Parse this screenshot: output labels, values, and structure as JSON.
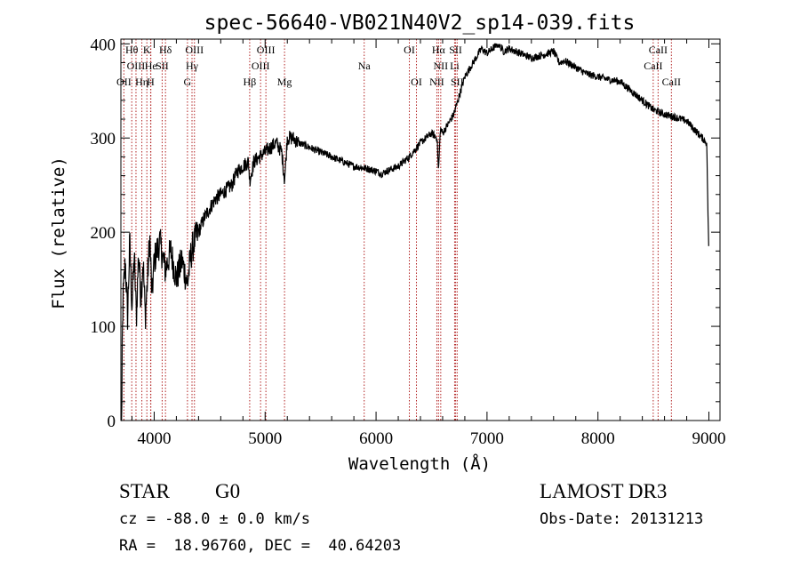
{
  "chart_data": {
    "type": "line",
    "title": "spec-56640-VB021N40V2_sp14-039.fits",
    "xlabel": "Wavelength (Å)",
    "ylabel": "Flux (relative)",
    "xlim": [
      3700,
      9100
    ],
    "ylim": [
      0,
      405
    ],
    "xticks": [
      4000,
      5000,
      6000,
      7000,
      8000,
      9000
    ],
    "yticks": [
      0,
      100,
      200,
      300,
      400
    ],
    "series": [
      {
        "name": "spectrum",
        "x": [
          3700,
          3720,
          3740,
          3760,
          3780,
          3800,
          3820,
          3840,
          3860,
          3880,
          3900,
          3920,
          3940,
          3960,
          3980,
          4000,
          4050,
          4100,
          4150,
          4200,
          4250,
          4300,
          4330,
          4360,
          4400,
          4450,
          4500,
          4550,
          4600,
          4650,
          4700,
          4750,
          4800,
          4850,
          4861,
          4900,
          4950,
          5000,
          5050,
          5100,
          5150,
          5175,
          5200,
          5250,
          5300,
          5400,
          5500,
          5600,
          5700,
          5800,
          5900,
          6000,
          6050,
          6100,
          6200,
          6300,
          6400,
          6450,
          6500,
          6550,
          6563,
          6580,
          6600,
          6650,
          6700,
          6750,
          6800,
          6850,
          6900,
          6950,
          7000,
          7050,
          7100,
          7150,
          7200,
          7300,
          7400,
          7500,
          7600,
          7650,
          7700,
          7800,
          7900,
          8000,
          8100,
          8200,
          8300,
          8400,
          8500,
          8600,
          8700,
          8800,
          8900,
          8980,
          9000
        ],
        "values": [
          5,
          130,
          170,
          110,
          190,
          120,
          175,
          110,
          180,
          130,
          170,
          110,
          150,
          195,
          130,
          170,
          190,
          160,
          180,
          150,
          170,
          145,
          175,
          190,
          200,
          215,
          225,
          235,
          240,
          245,
          250,
          265,
          270,
          275,
          255,
          275,
          280,
          285,
          290,
          295,
          285,
          255,
          300,
          300,
          295,
          290,
          285,
          280,
          275,
          270,
          268,
          265,
          262,
          265,
          270,
          280,
          295,
          300,
          305,
          300,
          265,
          310,
          305,
          315,
          325,
          345,
          365,
          375,
          385,
          395,
          390,
          395,
          400,
          392,
          395,
          390,
          385,
          388,
          392,
          380,
          382,
          375,
          368,
          365,
          362,
          360,
          350,
          340,
          330,
          325,
          322,
          318,
          305,
          295,
          170
        ]
      }
    ],
    "lines": [
      {
        "w": 3727,
        "label": "OII",
        "row": 2
      },
      {
        "w": 3798,
        "label": "Hθ",
        "row": 0
      },
      {
        "w": 3836,
        "label": "OIII",
        "row": 1
      },
      {
        "w": 3889,
        "label": "Hη",
        "row": 2
      },
      {
        "w": 3934,
        "label": "K",
        "row": 0
      },
      {
        "w": 3968,
        "label": "H",
        "row": 2
      },
      {
        "w": 3970,
        "label": "He",
        "row": 1
      },
      {
        "w": 4072,
        "label": "SII",
        "row": 1
      },
      {
        "w": 4102,
        "label": "Hδ",
        "row": 0
      },
      {
        "w": 4300,
        "label": "G",
        "row": 2
      },
      {
        "w": 4341,
        "label": "Hγ",
        "row": 1
      },
      {
        "w": 4363,
        "label": "OIII",
        "row": 0
      },
      {
        "w": 4861,
        "label": "Hβ",
        "row": 2
      },
      {
        "w": 4959,
        "label": "OIII",
        "row": 1
      },
      {
        "w": 5007,
        "label": "OIII",
        "row": 0
      },
      {
        "w": 5175,
        "label": "Mg",
        "row": 2
      },
      {
        "w": 5893,
        "label": "Na",
        "row": 1
      },
      {
        "w": 6300,
        "label": "OI",
        "row": 0
      },
      {
        "w": 6364,
        "label": "OI",
        "row": 2
      },
      {
        "w": 6548,
        "label": "NII",
        "row": 2
      },
      {
        "w": 6563,
        "label": "Hα",
        "row": 0
      },
      {
        "w": 6583,
        "label": "NII",
        "row": 1
      },
      {
        "w": 6708,
        "label": "Li",
        "row": 1
      },
      {
        "w": 6717,
        "label": "SII",
        "row": 0
      },
      {
        "w": 6731,
        "label": "SII",
        "row": 2
      },
      {
        "w": 8498,
        "label": "CaII",
        "row": 1
      },
      {
        "w": 8542,
        "label": "CaII",
        "row": 0
      },
      {
        "w": 8662,
        "label": "CaII",
        "row": 2
      }
    ]
  },
  "info": {
    "class": "STAR",
    "subclass": "G0",
    "survey": "LAMOST DR3",
    "cz": "cz = -88.0 ± 0.0 km/s",
    "obs_date": "Obs-Date: 20131213",
    "coords": "RA =  18.96760, DEC =  40.64203"
  },
  "colors": {
    "line": "#000000",
    "marker": "#b22222"
  }
}
